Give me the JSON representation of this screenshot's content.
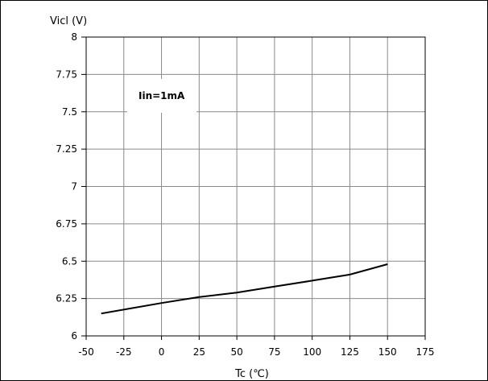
{
  "chart_data": {
    "type": "line",
    "ylabel": "Vicl (V)",
    "xlabel": "Tc (℃)",
    "annotation": "Iin=1mA",
    "xlim": [
      -50,
      175
    ],
    "ylim": [
      6,
      8
    ],
    "x_ticks": [
      "-50",
      "-25",
      "0",
      "25",
      "50",
      "75",
      "100",
      "125",
      "150",
      "175"
    ],
    "y_ticks": [
      "6",
      "6.25",
      "6.5",
      "6.75",
      "7",
      "7.25",
      "7.5",
      "7.75",
      "8"
    ],
    "grid": true,
    "series": [
      {
        "x": [
          -40,
          0,
          25,
          50,
          75,
          100,
          125,
          150
        ],
        "y": [
          6.15,
          6.22,
          6.26,
          6.29,
          6.33,
          6.37,
          6.41,
          6.48
        ]
      }
    ]
  }
}
